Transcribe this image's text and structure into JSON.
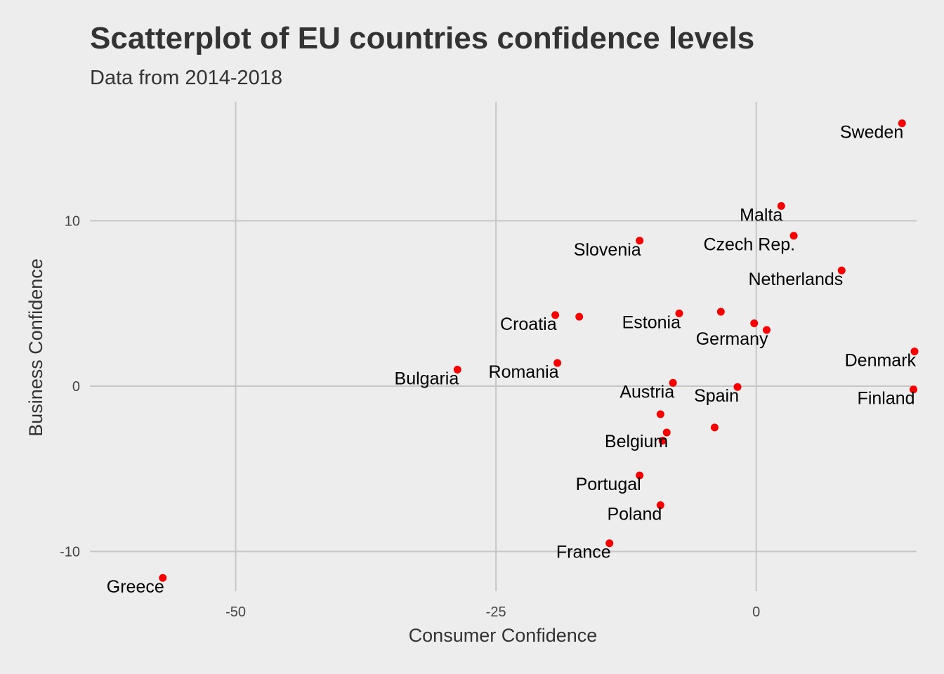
{
  "chart_data": {
    "type": "scatter",
    "title": "Scatterplot of EU countries confidence levels",
    "subtitle": "Data from 2014-2018",
    "xlabel": "Consumer Confidence",
    "ylabel": "Business Confidence",
    "xlim": [
      -64,
      15.4
    ],
    "ylim": [
      -12.4,
      17.2
    ],
    "xticks": [
      -50,
      -25,
      0
    ],
    "yticks": [
      -10,
      0,
      10
    ],
    "grid": true,
    "point_color": "#f40000",
    "points": [
      {
        "label": "Sweden",
        "x": 14.0,
        "y": 15.9
      },
      {
        "label": "Malta",
        "x": 2.4,
        "y": 10.9
      },
      {
        "label": "Czech Rep.",
        "x": 3.6,
        "y": 9.1
      },
      {
        "label": "Slovenia",
        "x": -11.2,
        "y": 8.8
      },
      {
        "label": "Netherlands",
        "x": 8.2,
        "y": 7.0
      },
      {
        "label": "Croatia",
        "x": -19.3,
        "y": 4.3
      },
      {
        "label": "",
        "x": -17.0,
        "y": 4.2
      },
      {
        "label": "Estonia",
        "x": -7.4,
        "y": 4.4
      },
      {
        "label": "",
        "x": -3.4,
        "y": 4.5
      },
      {
        "label": "",
        "x": -0.2,
        "y": 3.8
      },
      {
        "label": "Germany",
        "x": 1.0,
        "y": 3.4
      },
      {
        "label": "Denmark",
        "x": 15.2,
        "y": 2.1
      },
      {
        "label": "Romania",
        "x": -19.1,
        "y": 1.4
      },
      {
        "label": "Bulgaria",
        "x": -28.7,
        "y": 1.0
      },
      {
        "label": "Austria",
        "x": -8.0,
        "y": 0.2
      },
      {
        "label": "Spain",
        "x": -1.8,
        "y": -0.05
      },
      {
        "label": "Finland",
        "x": 15.1,
        "y": -0.2
      },
      {
        "label": "",
        "x": -9.2,
        "y": -1.7
      },
      {
        "label": "",
        "x": -4.0,
        "y": -2.5
      },
      {
        "label": "Belgium",
        "x": -8.6,
        "y": -2.8
      },
      {
        "label": "",
        "x": -9.0,
        "y": -3.3
      },
      {
        "label": "Portugal",
        "x": -11.2,
        "y": -5.4
      },
      {
        "label": "Poland",
        "x": -9.2,
        "y": -7.2
      },
      {
        "label": "France",
        "x": -14.1,
        "y": -9.5
      },
      {
        "label": "Greece",
        "x": -57.0,
        "y": -11.6
      }
    ]
  }
}
